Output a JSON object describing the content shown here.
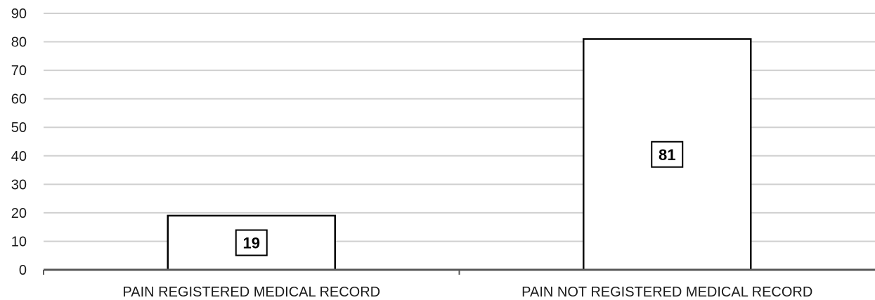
{
  "chart_data": {
    "type": "bar",
    "title": "",
    "xlabel": "",
    "ylabel": "",
    "categories": [
      "PAIN REGISTERED MEDICAL RECORD",
      "PAIN NOT REGISTERED MEDICAL RECORD"
    ],
    "values": [
      19,
      81
    ],
    "data_labels": [
      "19",
      "81"
    ],
    "ylim": [
      0,
      90
    ],
    "yticks": [
      0,
      10,
      20,
      30,
      40,
      50,
      60,
      70,
      80,
      90
    ],
    "grid": true,
    "legend": "none",
    "colors": {
      "bar_fill": "#ffffff",
      "bar_stroke": "#000000",
      "grid": "#d0d0d0",
      "axis": "#595959"
    }
  }
}
